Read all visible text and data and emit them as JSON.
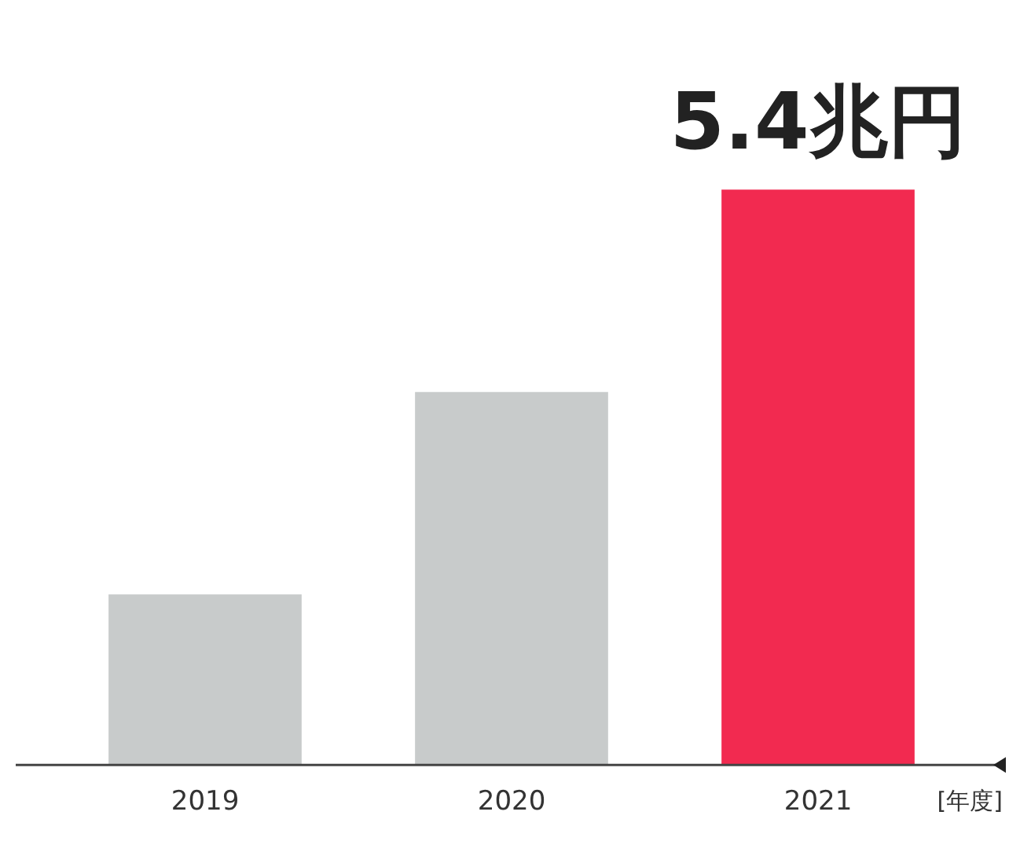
{
  "chart_data": {
    "type": "bar",
    "categories": [
      "2019",
      "2020",
      "2021"
    ],
    "xlabel": "[年度]",
    "values": [
      1.6,
      3.5,
      5.4
    ],
    "colors": [
      "#c8cbcb",
      "#c8cbcb",
      "#f22a50"
    ],
    "value_labels": [
      null,
      null,
      "5.4兆円"
    ],
    "grid": false,
    "legend": false,
    "tick_labels": "x"
  }
}
